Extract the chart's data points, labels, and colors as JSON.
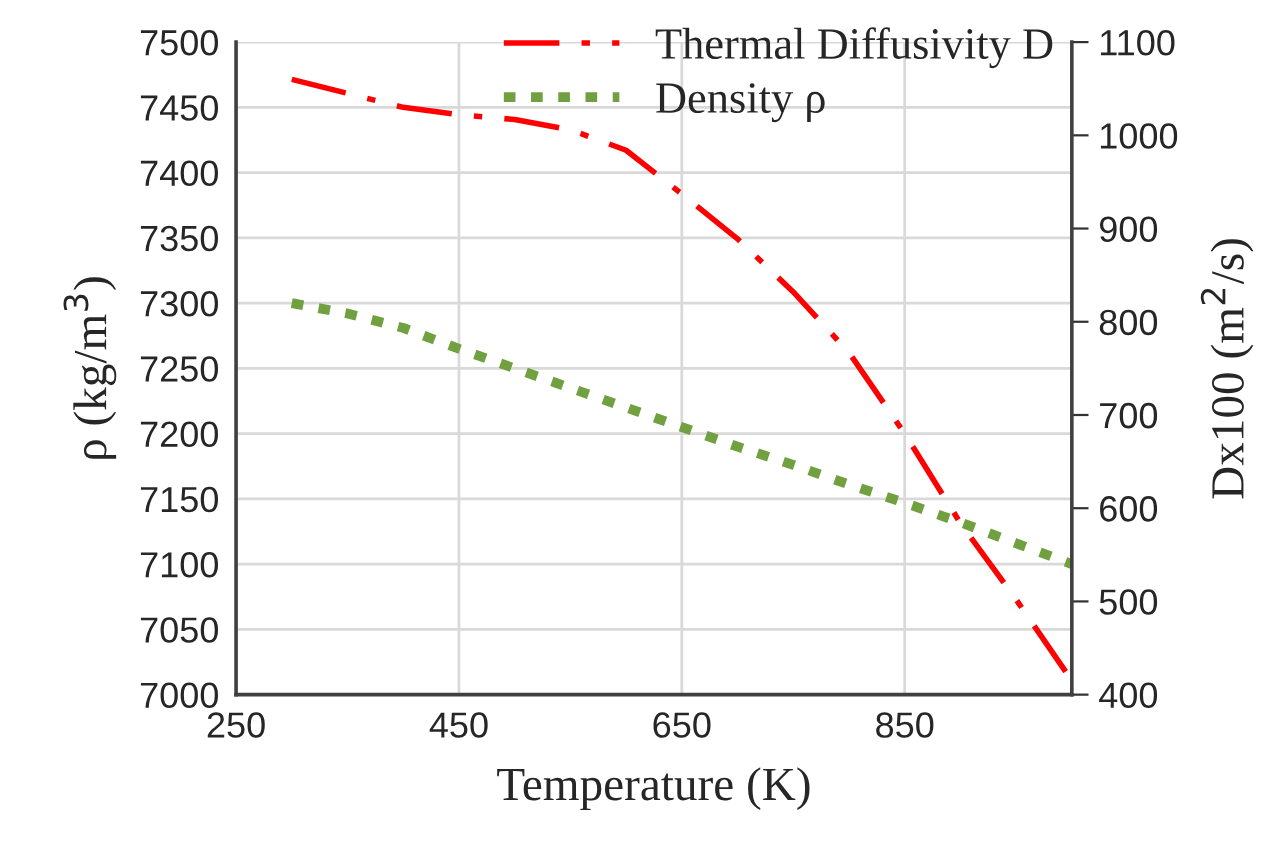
{
  "chart_data": {
    "type": "line",
    "xlabel": "Temperature (K)",
    "ylabel": "ρ (kg/m$^{3}$)",
    "y2label": "Dx100 (m$^{2}$/s)",
    "x": [
      300,
      350,
      400,
      450,
      500,
      550,
      600,
      650,
      700,
      750,
      800,
      850,
      900,
      950,
      1000
    ],
    "series": [
      {
        "name": "Thermal Diffusivity D",
        "color": "#ff0000",
        "axis": "y2",
        "line_style": "dashdot",
        "values": [
          1060,
          1045,
          1030,
          1022,
          1017,
          1006,
          984,
          937,
          889,
          832,
          767,
          680,
          584,
          502,
          415
        ]
      },
      {
        "name": "Density ρ",
        "color": "#70a040",
        "line_style": "dotted",
        "values": [
          7300,
          7292,
          7281,
          7265,
          7250,
          7235,
          7220,
          7205,
          7190,
          7176,
          7161,
          7147,
          7132,
          7116,
          7100
        ]
      }
    ],
    "xlim": [
      250,
      1000
    ],
    "xticks": [
      250,
      450,
      650,
      850
    ],
    "ylim": [
      7000,
      7500
    ],
    "yticks": [
      7000,
      7050,
      7100,
      7150,
      7200,
      7250,
      7300,
      7350,
      7400,
      7450,
      7500
    ],
    "y2lim": [
      400,
      1100
    ],
    "y2ticks": [
      400,
      500,
      600,
      700,
      800,
      900,
      1000,
      1100
    ],
    "grid": true,
    "legend": "top right",
    "marker": "none"
  }
}
